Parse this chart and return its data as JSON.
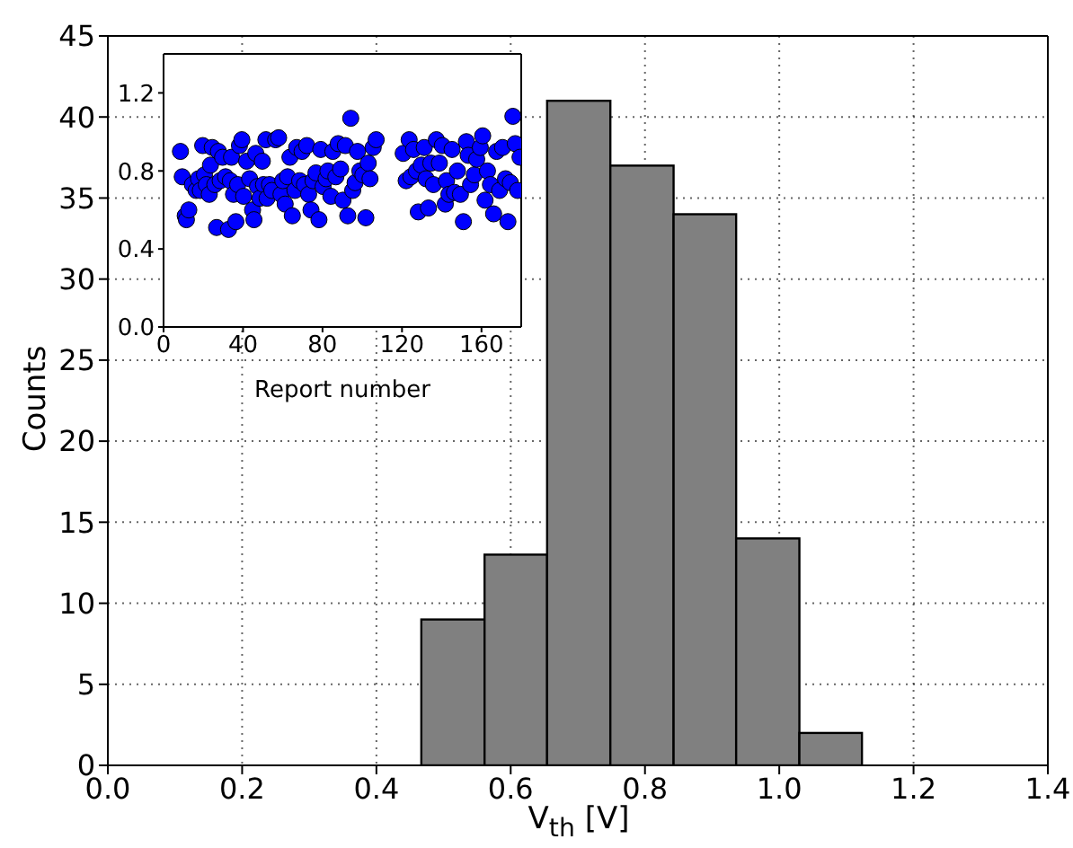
{
  "chart_data": [
    {
      "type": "histogram",
      "xlabel": "V$_{th}$ [V]",
      "ylabel": "Counts",
      "bins": [
        0.466,
        0.56,
        0.653,
        0.747,
        0.841,
        0.934,
        1.028,
        1.121
      ],
      "values": [
        9,
        13,
        41,
        37,
        34,
        14,
        2
      ],
      "color": "#808080",
      "xlim": [
        0,
        1.4
      ],
      "xticks": [
        {
          "value": 0,
          "label": "0.0"
        },
        {
          "value": 0.2,
          "label": "0.2"
        },
        {
          "value": 0.4,
          "label": "0.4"
        },
        {
          "value": 0.6,
          "label": "0.6"
        },
        {
          "value": 0.8,
          "label": "0.8"
        },
        {
          "value": 1,
          "label": "1.0"
        },
        {
          "value": 1.2,
          "label": "1.2"
        },
        {
          "value": 1.4,
          "label": "1.4"
        }
      ],
      "ylim": [
        0,
        45
      ],
      "yticks": [
        0,
        5,
        10,
        15,
        20,
        25,
        30,
        35,
        40,
        45
      ],
      "grid": true
    },
    {
      "type": "scatter",
      "xlabel": "Report number",
      "color": "#0000ff",
      "marker": "circle",
      "xlim": [
        0,
        180
      ],
      "xticks": [
        0,
        40,
        80,
        120,
        160
      ],
      "ylim": [
        0,
        1.4
      ],
      "yticks": [
        {
          "value": 0,
          "label": "0.0"
        },
        {
          "value": 0.4,
          "label": "0.4"
        },
        {
          "value": 0.8,
          "label": "0.8"
        },
        {
          "value": 1.2,
          "label": "1.2"
        }
      ],
      "x": [
        8.5,
        9.4,
        10.9,
        11.5,
        12.7,
        14.5,
        16.4,
        17.6,
        18.5,
        19.7,
        20.6,
        21.5,
        23,
        23.6,
        24.5,
        25.8,
        26.7,
        27.6,
        28.5,
        29.7,
        31.2,
        32.7,
        33.6,
        34.2,
        35.2,
        36.4,
        37.3,
        38.2,
        39.4,
        40.3,
        41.8,
        43.3,
        44.8,
        45.5,
        46.4,
        47.3,
        48.5,
        49.7,
        50.3,
        51.5,
        52.1,
        53.3,
        54.5,
        56.4,
        57.9,
        59.1,
        60,
        61.2,
        62.4,
        63.6,
        64.8,
        66.1,
        67,
        68.5,
        69.7,
        70.9,
        72.1,
        73,
        74.2,
        75.2,
        76.7,
        78.2,
        79.1,
        80.3,
        81.8,
        82.7,
        84.2,
        85.2,
        86.7,
        87.9,
        89.1,
        90.3,
        91.5,
        92.7,
        94.2,
        95.2,
        96.4,
        97.6,
        98.8,
        100.3,
        101.8,
        103,
        103.9,
        105.5,
        107,
        120.6,
        122.1,
        123.6,
        124.5,
        125.8,
        127.3,
        128.2,
        129.7,
        131.2,
        132.1,
        133.3,
        134.5,
        135.8,
        137.3,
        138.8,
        140.3,
        141.8,
        142.4,
        143.6,
        145.2,
        146.4,
        147.9,
        149.4,
        150.9,
        152.4,
        153.3,
        154.5,
        156.4,
        157.6,
        159.4,
        160.6,
        161.8,
        163,
        164.5,
        166.1,
        167.6,
        169.1,
        170.6,
        172.1,
        173.3,
        174.5,
        175.8,
        177,
        178.2,
        179.4
      ],
      "values": [
        0.9,
        0.77,
        0.57,
        0.55,
        0.6,
        0.73,
        0.7,
        0.76,
        0.7,
        0.93,
        0.78,
        0.73,
        0.68,
        0.83,
        0.92,
        0.73,
        0.51,
        0.9,
        0.75,
        0.87,
        0.77,
        0.5,
        0.75,
        0.87,
        0.68,
        0.54,
        0.73,
        0.93,
        0.96,
        0.67,
        0.85,
        0.76,
        0.6,
        0.55,
        0.89,
        0.72,
        0.66,
        0.85,
        0.73,
        0.96,
        0.66,
        0.73,
        0.7,
        0.96,
        0.97,
        0.68,
        0.75,
        0.63,
        0.77,
        0.87,
        0.57,
        0.7,
        0.92,
        0.75,
        0.9,
        0.73,
        0.93,
        0.68,
        0.6,
        0.75,
        0.79,
        0.55,
        0.91,
        0.72,
        0.76,
        0.8,
        0.67,
        0.9,
        0.77,
        0.94,
        0.81,
        0.65,
        0.93,
        0.57,
        1.07,
        0.7,
        0.74,
        0.9,
        0.8,
        0.78,
        0.56,
        0.84,
        0.76,
        0.92,
        0.96,
        0.89,
        0.75,
        0.96,
        0.77,
        0.91,
        0.8,
        0.59,
        0.83,
        0.92,
        0.76,
        0.61,
        0.84,
        0.73,
        0.96,
        0.84,
        0.93,
        0.63,
        0.75,
        0.68,
        0.91,
        0.69,
        0.8,
        0.68,
        0.54,
        0.95,
        0.88,
        0.73,
        0.78,
        0.86,
        0.92,
        0.98,
        0.65,
        0.8,
        0.73,
        0.58,
        0.9,
        0.7,
        0.92,
        0.76,
        0.54,
        0.74,
        1.08,
        0.94,
        0.7,
        0.87
      ]
    }
  ]
}
